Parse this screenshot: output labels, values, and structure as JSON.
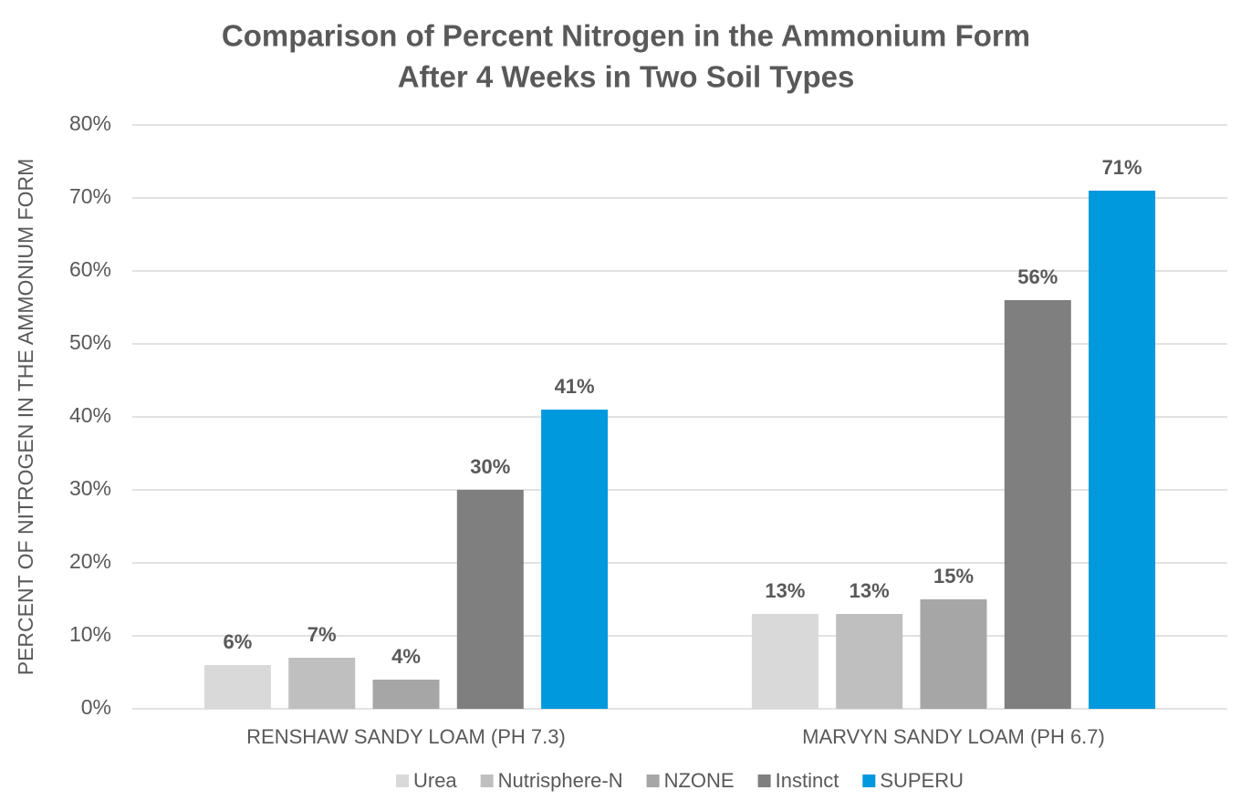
{
  "chart_data": {
    "type": "bar",
    "title": [
      "Comparison of Percent Nitrogen in the Ammonium Form",
      "After 4 Weeks in Two Soil Types"
    ],
    "y_label": "PERCENT OF NITROGEN IN THE AMMONIUM FORM",
    "categories": [
      "RENSHAW SANDY LOAM (PH 7.3)",
      "MARVYN SANDY LOAM (PH 6.7)"
    ],
    "series": [
      {
        "name": "Urea",
        "color": "#d9d9d9",
        "values": [
          6,
          13
        ],
        "value_labels": [
          "6%",
          "13%"
        ]
      },
      {
        "name": "Nutrisphere-N",
        "color": "#bfbfbf",
        "values": [
          7,
          13
        ],
        "value_labels": [
          "7%",
          "13%"
        ]
      },
      {
        "name": "NZONE",
        "color": "#a6a6a6",
        "values": [
          4,
          15
        ],
        "value_labels": [
          "4%",
          "15%"
        ]
      },
      {
        "name": "Instinct",
        "color": "#7f7f7f",
        "values": [
          30,
          56
        ],
        "value_labels": [
          "30%",
          "56%"
        ]
      },
      {
        "name": "SUPERU",
        "color": "#0099dd",
        "values": [
          41,
          71
        ],
        "value_labels": [
          "41%",
          "71%"
        ]
      }
    ],
    "ylim": [
      0,
      80
    ],
    "yticks": [
      {
        "value": 0,
        "label": "0%"
      },
      {
        "value": 10,
        "label": "10%"
      },
      {
        "value": 20,
        "label": "20%"
      },
      {
        "value": 30,
        "label": "30%"
      },
      {
        "value": 40,
        "label": "40%"
      },
      {
        "value": 50,
        "label": "50%"
      },
      {
        "value": 60,
        "label": "60%"
      },
      {
        "value": 70,
        "label": "70%"
      },
      {
        "value": 80,
        "label": "80%"
      }
    ],
    "grid": true,
    "legend": "bottom"
  }
}
